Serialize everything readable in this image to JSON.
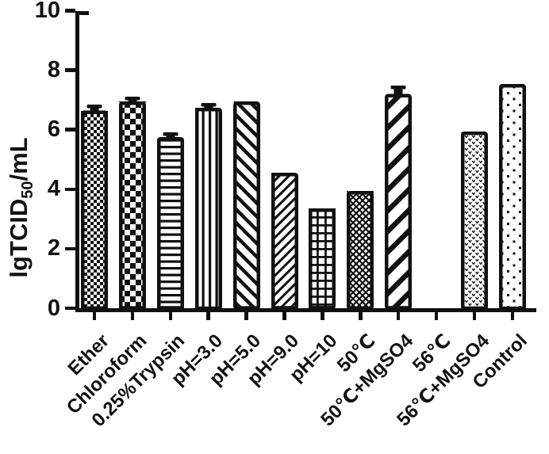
{
  "meta": {
    "ink_color": "#111111",
    "background_color": "#ffffff"
  },
  "y_axis": {
    "title_prefix": "lgTCID",
    "title_sub": "50",
    "title_suffix": "/mL"
  },
  "chart_data": {
    "type": "bar",
    "title": "",
    "xlabel": "",
    "ylabel": "lgTCID50/mL",
    "ylim": [
      0,
      10
    ],
    "yticks": [
      0,
      2,
      4,
      6,
      8,
      10
    ],
    "grid": false,
    "legend_position": "none",
    "style": "white bars with black hatch fill patterns and thick black borders, error bar caps on some bars",
    "categories": [
      "Ether",
      "Chloroform",
      "0.25%Trypsin",
      "pH=3.0",
      "pH=5.0",
      "pH=9.0",
      "pH=10",
      "50℃",
      "50℃+MgSO4",
      "56℃",
      "56℃+MgSO4",
      "Control"
    ],
    "values": [
      6.7,
      7.0,
      5.8,
      6.8,
      7.0,
      4.6,
      3.4,
      4.0,
      7.25,
      0,
      6.0,
      7.6
    ],
    "errors": [
      0.12,
      0.08,
      0.08,
      0.08,
      0,
      0,
      0,
      0,
      0.2,
      0,
      0,
      0
    ],
    "patterns": [
      "checker-fine",
      "checker-coarse",
      "hlines",
      "vlines",
      "diag-fwd",
      "diag-back-thin",
      "grid",
      "crosshatch-diag",
      "diag-back-thick",
      "none",
      "scales",
      "dots"
    ]
  }
}
